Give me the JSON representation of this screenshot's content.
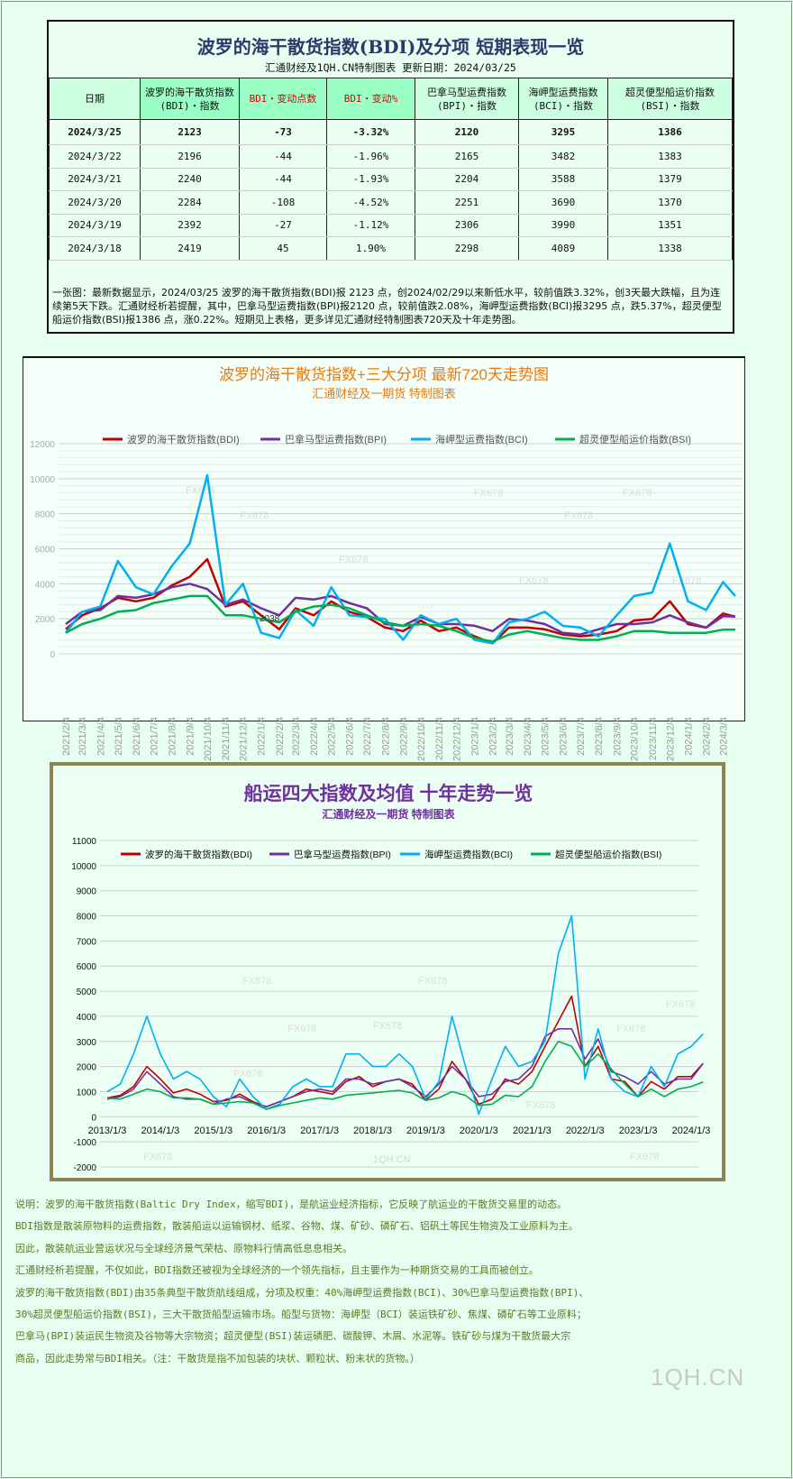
{
  "table": {
    "title": "波罗的海干散货指数(BDI)及分项 短期表现一览",
    "subtitle": "汇通财经及1QH.CN特制图表    更新日期：2024/03/25",
    "headers": [
      {
        "l1": "日期",
        "l2": ""
      },
      {
        "l1": "波罗的海干散货指数",
        "l2": "(BDI)・指数"
      },
      {
        "l1": "BDI・变动点数",
        "l2": ""
      },
      {
        "l1": "BDI・变动%",
        "l2": ""
      },
      {
        "l1": "巴拿马型运费指数",
        "l2": "(BPI)・指数"
      },
      {
        "l1": "海岬型运费指数",
        "l2": "(BCI)・指数"
      },
      {
        "l1": "超灵便型船运价指数",
        "l2": "(BSI)・指数"
      }
    ],
    "rows": [
      [
        "2024/3/25",
        "2123",
        "-73",
        "-3.32%",
        "2120",
        "3295",
        "1386"
      ],
      [
        "2024/3/22",
        "2196",
        "-44",
        "-1.96%",
        "2165",
        "3482",
        "1383"
      ],
      [
        "2024/3/21",
        "2240",
        "-44",
        "-1.93%",
        "2204",
        "3588",
        "1379"
      ],
      [
        "2024/3/20",
        "2284",
        "-108",
        "-4.52%",
        "2251",
        "3690",
        "1370"
      ],
      [
        "2024/3/19",
        "2392",
        "-27",
        "-1.12%",
        "2306",
        "3990",
        "1351"
      ],
      [
        "2024/3/18",
        "2419",
        "45",
        "1.90%",
        "2298",
        "4089",
        "1338"
      ]
    ],
    "summary": "一张图：最新数据显示，2024/03/25 波罗的海干散货指数(BDI)报 2123 点，创2024/02/29以来新低水平，较前值跌3.32%，创3天最大跌幅，且为连续第5天下跌。汇通财经析若提醒，其中，巴拿马型运费指数(BPI)报2120 点，较前值跌2.08%，海岬型运费指数(BCI)报3295 点，跌5.37%，超灵便型船运价指数(BSI)报1386 点，涨0.22%。短期见上表格，更多详见汇通财经特制图表720天及十年走势图。"
  },
  "chart_data": [
    {
      "type": "line",
      "title": "波罗的海干散货指数+三大分项  最新720天走势图",
      "subtitle": "汇通财经及一期货  特制图表",
      "title_color": "#e87a10",
      "ylim": [
        0,
        12000
      ],
      "yticks": [
        0,
        2000,
        4000,
        6000,
        8000,
        10000,
        12000
      ],
      "grid": true,
      "legend": "top",
      "annotation": "2038",
      "watermark": "FX678",
      "x": [
        "2021/2/4",
        "2021/3/4",
        "2021/4/4",
        "2021/5/4",
        "2021/6/4",
        "2021/7/4",
        "2021/8/4",
        "2021/9/4",
        "2021/10/4",
        "2021/11/4",
        "2021/12/4",
        "2022/1/4",
        "2022/2/4",
        "2022/3/4",
        "2022/4/4",
        "2022/5/4",
        "2022/6/4",
        "2022/7/4",
        "2022/8/4",
        "2022/9/4",
        "2022/10/4",
        "2022/11/4",
        "2022/12/4",
        "2023/1/4",
        "2023/2/4",
        "2023/3/4",
        "2023/4/4",
        "2023/5/4",
        "2023/6/4",
        "2023/7/4",
        "2023/8/4",
        "2023/9/4",
        "2023/10/4",
        "2023/11/4",
        "2023/12/4",
        "2024/1/4",
        "2024/2/4",
        "2024/3/4",
        "2024/3/25"
      ],
      "xticks": [
        "2021/2/4",
        "2021/3/4",
        "2021/4/4",
        "2021/5/4",
        "2021/6/4",
        "2021/7/4",
        "2021/8/4",
        "2021/9/4",
        "2021/10/4",
        "2021/11/4",
        "2021/12/4",
        "2022/1/4",
        "2022/2/4",
        "2022/3/4",
        "2022/4/4",
        "2022/5/4",
        "2022/6/4",
        "2022/7/4",
        "2022/8/4",
        "2022/9/4",
        "2022/10/4",
        "2022/11/4",
        "2022/12/4",
        "2023/1/4",
        "2023/2/4",
        "2023/3/4",
        "2023/4/4",
        "2023/5/4",
        "2023/6/4",
        "2023/7/4",
        "2023/8/4",
        "2023/9/4",
        "2023/10/4",
        "2023/11/4",
        "2023/12/4",
        "2024/1/4",
        "2024/2/4",
        "2024/3/4"
      ],
      "series": [
        {
          "name": "波罗的海干散货指数(BDI)",
          "color": "#c00000",
          "values": [
            1400,
            2200,
            2600,
            3200,
            3000,
            3200,
            3900,
            4400,
            5400,
            2700,
            3000,
            2200,
            1400,
            2600,
            2200,
            3000,
            2400,
            2100,
            1500,
            1300,
            1900,
            1300,
            1500,
            1000,
            600,
            1500,
            1500,
            1400,
            1100,
            1000,
            1100,
            1300,
            1900,
            2000,
            3000,
            1700,
            1500,
            2300,
            2123
          ]
        },
        {
          "name": "巴拿马型运费指数(BPI)",
          "color": "#7030a0",
          "values": [
            1700,
            2400,
            2500,
            3300,
            3200,
            3400,
            3800,
            4000,
            3700,
            2800,
            3100,
            2600,
            2200,
            3200,
            3100,
            3300,
            2900,
            2600,
            1700,
            1600,
            2100,
            1700,
            1700,
            1600,
            1300,
            2000,
            1900,
            1700,
            1200,
            1100,
            1400,
            1700,
            1700,
            1800,
            2200,
            1800,
            1500,
            2150,
            2120
          ]
        },
        {
          "name": "海岬型运费指数(BCI)",
          "color": "#00b0f0",
          "values": [
            1200,
            2400,
            2700,
            5300,
            3800,
            3400,
            5000,
            6300,
            10200,
            2800,
            4000,
            1200,
            900,
            2500,
            1600,
            3800,
            2200,
            2100,
            2000,
            800,
            2200,
            1700,
            2000,
            800,
            600,
            1800,
            2000,
            2400,
            1600,
            1500,
            1000,
            2200,
            3300,
            3500,
            6300,
            3000,
            2500,
            4100,
            3295
          ]
        },
        {
          "name": "超灵便型船运价指数(BSI)",
          "color": "#00b050",
          "values": [
            1200,
            1700,
            2000,
            2400,
            2500,
            2900,
            3100,
            3300,
            3300,
            2200,
            2200,
            2000,
            1800,
            2400,
            2700,
            2800,
            2600,
            2200,
            1800,
            1600,
            1700,
            1600,
            1300,
            900,
            700,
            1100,
            1300,
            1100,
            900,
            800,
            800,
            1000,
            1300,
            1300,
            1200,
            1200,
            1200,
            1380,
            1386
          ]
        }
      ]
    },
    {
      "type": "line",
      "title": "船运四大指数及均值 十年走势一览",
      "subtitle": "汇通财经及一期货 特制图表",
      "title_color": "#7030a0",
      "ylim": [
        -2000,
        11000
      ],
      "yticks": [
        -2000,
        -1000,
        0,
        1000,
        2000,
        3000,
        4000,
        5000,
        6000,
        7000,
        8000,
        9000,
        10000,
        11000
      ],
      "grid": true,
      "legend": "top",
      "watermark": "FX678",
      "watermark2": "1QH.CN",
      "xticks": [
        "2013/1/3",
        "2014/1/3",
        "2015/1/3",
        "2016/1/3",
        "2017/1/3",
        "2018/1/3",
        "2019/1/3",
        "2020/1/3",
        "2021/1/3",
        "2022/1/3",
        "2023/1/3",
        "2024/1/3"
      ],
      "x": [
        "2013/1/3",
        "2013/4/3",
        "2013/7/3",
        "2013/10/3",
        "2014/1/3",
        "2014/4/3",
        "2014/7/3",
        "2014/10/3",
        "2015/1/3",
        "2015/4/3",
        "2015/7/3",
        "2015/10/3",
        "2016/1/3",
        "2016/4/3",
        "2016/7/3",
        "2016/10/3",
        "2017/1/3",
        "2017/4/3",
        "2017/7/3",
        "2017/10/3",
        "2018/1/3",
        "2018/4/3",
        "2018/7/3",
        "2018/10/3",
        "2019/1/3",
        "2019/4/3",
        "2019/7/3",
        "2019/10/3",
        "2020/1/3",
        "2020/4/3",
        "2020/7/3",
        "2020/10/3",
        "2021/1/3",
        "2021/4/3",
        "2021/7/3",
        "2021/10/3",
        "2022/1/3",
        "2022/4/3",
        "2022/7/3",
        "2022/10/3",
        "2023/1/3",
        "2023/4/3",
        "2023/7/3",
        "2023/10/3",
        "2024/1/3",
        "2024/3/25"
      ],
      "series": [
        {
          "name": "波罗的海干散货指数(BDI)",
          "color": "#c00000",
          "values": [
            750,
            850,
            1200,
            2000,
            1500,
            950,
            1100,
            900,
            600,
            650,
            900,
            600,
            400,
            600,
            800,
            1100,
            1000,
            900,
            1400,
            1600,
            1200,
            1400,
            1500,
            1300,
            650,
            1100,
            2200,
            1500,
            500,
            700,
            1500,
            1300,
            1800,
            2800,
            3800,
            4800,
            2000,
            2800,
            1500,
            1400,
            800,
            1400,
            1100,
            1600,
            1600,
            2123
          ]
        },
        {
          "name": "巴拿马型运费指数(BPI)",
          "color": "#7030a0",
          "values": [
            700,
            800,
            1100,
            1800,
            1300,
            800,
            700,
            700,
            500,
            700,
            800,
            550,
            400,
            600,
            800,
            1000,
            1100,
            1000,
            1500,
            1500,
            1300,
            1400,
            1500,
            1200,
            800,
            1300,
            2000,
            1500,
            800,
            900,
            1400,
            1500,
            2000,
            3200,
            3500,
            3500,
            2300,
            3100,
            1800,
            1600,
            1300,
            1800,
            1300,
            1500,
            1500,
            2120
          ]
        },
        {
          "name": "海岬型运费指数(BCI)",
          "color": "#00b0f0",
          "values": [
            1000,
            1300,
            2500,
            4000,
            2500,
            1500,
            1800,
            1500,
            800,
            400,
            1500,
            800,
            300,
            500,
            1200,
            1500,
            1200,
            1200,
            2500,
            2500,
            2000,
            2000,
            2500,
            2000,
            700,
            1400,
            4000,
            2000,
            100,
            1500,
            2800,
            2000,
            2200,
            3000,
            6500,
            8000,
            1500,
            3500,
            1500,
            1000,
            800,
            2000,
            1200,
            2500,
            2800,
            3295
          ]
        },
        {
          "name": "超灵便型船运价指数(BSI)",
          "color": "#00b050",
          "values": [
            750,
            700,
            900,
            1100,
            1000,
            750,
            750,
            700,
            500,
            550,
            600,
            550,
            300,
            450,
            550,
            650,
            750,
            700,
            850,
            900,
            950,
            1000,
            1050,
            950,
            650,
            750,
            1000,
            850,
            450,
            500,
            850,
            800,
            1200,
            2200,
            3000,
            2800,
            2000,
            2500,
            1900,
            1300,
            800,
            1100,
            800,
            1100,
            1200,
            1386
          ]
        }
      ]
    }
  ],
  "notes": [
    "说明：波罗的海干散货指数(Baltic Dry Index，缩写BDI)，是航运业经济指标，它反映了航运业的干散货交易里的动态。",
    "BDI指数是散装原物料的运费指数，散装船运以运输钢材、纸浆、谷物、煤、矿砂、磷矿石、铝矾土等民生物资及工业原料为主。",
    "因此，散装航运业营运状况与全球经济景气荣枯、原物料行情高低息息相关。",
    "汇通财经析若提醒，不仅如此，BDI指数还被视为全球经济的一个领先指标，且主要作为一种期货交易的工具而被创立。",
    "波罗的海干散货指数(BDI)由35条典型干散货航线组成，分项及权重：40%海岬型运费指数(BCI)、30%巴拿马型运费指数(BPI)、",
    "30%超灵便型船运价指数(BSI)，三大干散货船型运输市场。船型与货物：海岬型（BCI）装运铁矿砂、焦煤、磷矿石等工业原料；",
    "巴拿马(BPI)装运民生物资及谷物等大宗物资；超灵便型(BSI)装运磷肥、碳酸钾、木屑、水泥等。铁矿砂与煤为干散货最大宗",
    "商品，因此走势常与BDI相关。（注：干散货是指不加包装的块状、颗粒状、粉末状的货物。）"
  ],
  "logo": "1QH.CN"
}
